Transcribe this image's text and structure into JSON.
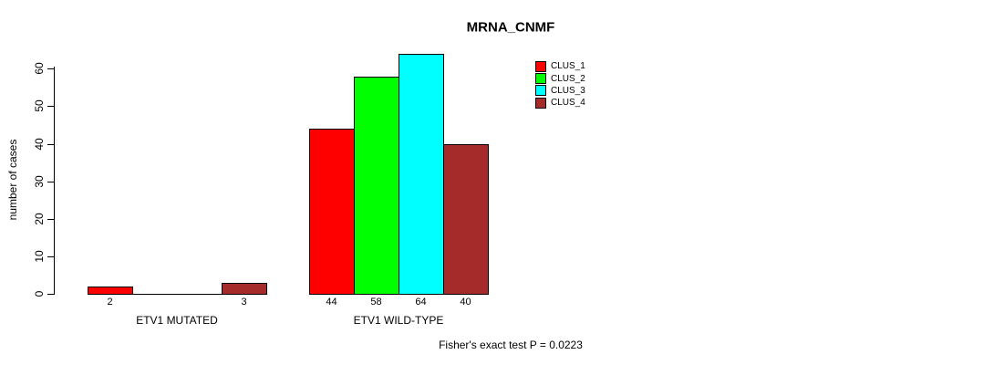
{
  "chart_data": {
    "type": "bar",
    "title": "MRNA_CNMF",
    "ylabel": "number of cases",
    "xlabel": "",
    "ylim": [
      0,
      60
    ],
    "yticks": [
      0,
      10,
      20,
      30,
      40,
      50,
      60
    ],
    "grid": false,
    "legend_position": "top-right",
    "legend_entries": [
      "CLUS_1",
      "CLUS_2",
      "CLUS_3",
      "CLUS_4"
    ],
    "series_colors": [
      "#ff0000",
      "#00ff00",
      "#00ffff",
      "#a52a2a"
    ],
    "groups": [
      {
        "label": "ETV1 MUTATED",
        "values": [
          2,
          0,
          0,
          3
        ],
        "bar_labels": [
          "2",
          "",
          "",
          "3"
        ]
      },
      {
        "label": "ETV1 WILD-TYPE",
        "values": [
          44,
          58,
          64,
          40
        ],
        "bar_labels": [
          "44",
          "58",
          "64",
          "40"
        ]
      }
    ],
    "footnote": "Fisher's exact test P = 0.0223"
  }
}
